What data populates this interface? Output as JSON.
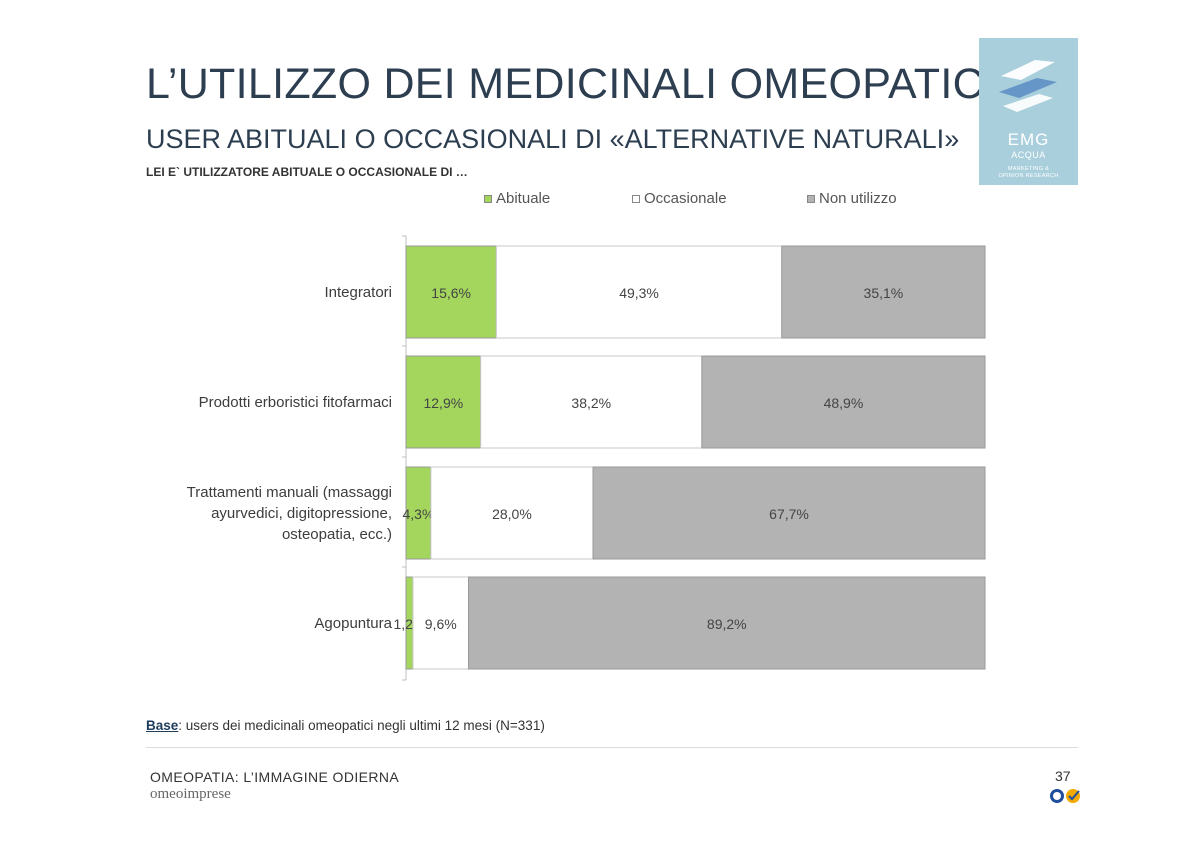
{
  "header": {
    "title": "L’UTILIZZO DEI MEDICINALI OMEOPATICI",
    "subtitle": "USER ABITUALI O OCCASIONALI DI «ALTERNATIVE NATURALI»",
    "question": "LEI E` UTILIZZATORE ABITUALE O OCCASIONALE DI …"
  },
  "logo": {
    "brand": "EMG",
    "sub": "ACQUA",
    "tagline_1": "MARKETING &",
    "tagline_2": "OPINION RESEARCH"
  },
  "chart_data": {
    "type": "bar",
    "orientation": "horizontal",
    "stacked": true,
    "title": "LEI E` UTILIZZATORE ABITUALE O OCCASIONALE DI …",
    "categories": [
      "Integratori",
      "Prodotti erboristici fitofarmaci",
      "Trattamenti manuali (massaggi ayurvedici, digitopressione, osteopatia, ecc.)",
      "Agopuntura"
    ],
    "category_lines": [
      [
        "Integratori"
      ],
      [
        "Prodotti erboristici fitofarmaci"
      ],
      [
        "Trattamenti manuali (massaggi",
        "ayurvedici, digitopressione,",
        "osteopatia, ecc.)"
      ],
      [
        "Agopuntura"
      ]
    ],
    "series": [
      {
        "name": "Abituale",
        "color": "#a4d65e",
        "values": [
          15.6,
          12.9,
          4.3,
          1.2
        ],
        "labels": [
          "15,6%",
          "12,9%",
          "4,3%",
          "1,2%"
        ]
      },
      {
        "name": "Occasionale",
        "color": "#ffffff",
        "values": [
          49.3,
          38.2,
          28.0,
          9.6
        ],
        "labels": [
          "49,3%",
          "38,2%",
          "28,0%",
          "9,6%"
        ]
      },
      {
        "name": "Non utilizzo",
        "color": "#b3b3b3",
        "values": [
          35.1,
          48.9,
          67.7,
          89.2
        ],
        "labels": [
          "35,1%",
          "48,9%",
          "67,7%",
          "89,2%"
        ]
      }
    ],
    "xlim": [
      0,
      100
    ],
    "legend_position": "top",
    "grid": false,
    "xlabel": "",
    "ylabel": ""
  },
  "base_note": {
    "label": "Base",
    "text": ": users dei medicinali omeopatici negli ultimi 12 mesi (N=331)"
  },
  "footer": {
    "title": "OMEOPATIA: L’IMMAGINE ODIERNA",
    "brand": "omeoimprese",
    "page_number": "37"
  },
  "colors": {
    "title": "#2c3e50",
    "logo_bg": "#a9cfdc",
    "abituale": "#a4d65e",
    "occasionale": "#ffffff",
    "non_utilizzo": "#b3b3b3"
  }
}
